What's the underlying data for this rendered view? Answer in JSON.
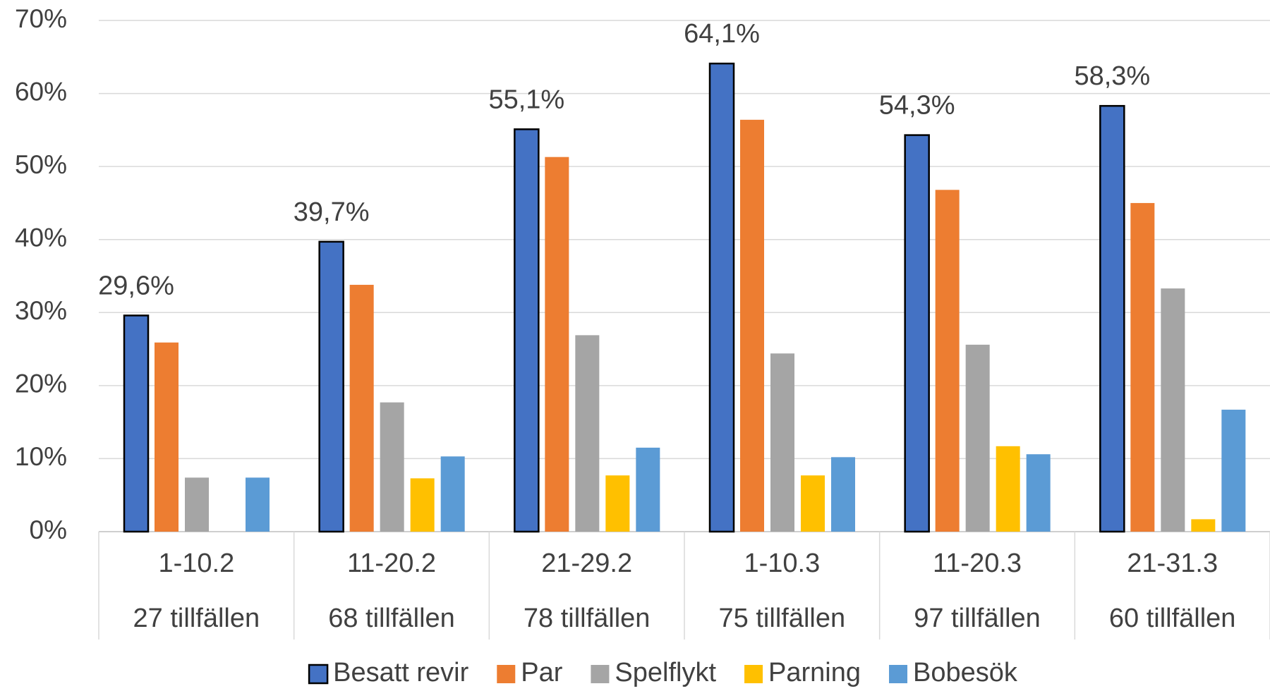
{
  "chart_data": {
    "type": "bar",
    "categories": [
      [
        "1-10.2",
        "27 tillfällen"
      ],
      [
        "11-20.2",
        "68 tillfällen"
      ],
      [
        "21-29.2",
        "78 tillfällen"
      ],
      [
        "1-10.3",
        "75 tillfällen"
      ],
      [
        "11-20.3",
        "97 tillfällen"
      ],
      [
        "21-31.3",
        "60 tillfällen"
      ]
    ],
    "series": [
      {
        "name": "Besatt revir",
        "color": "#4472c4",
        "edgecolor": "#000000",
        "values": [
          29.6,
          39.7,
          55.1,
          64.1,
          54.3,
          58.3
        ],
        "value_labels": [
          "29,6%",
          "39,7%",
          "55,1%",
          "64,1%",
          "54,3%",
          "58,3%"
        ]
      },
      {
        "name": "Par",
        "color": "#ed7d31",
        "values": [
          25.9,
          33.8,
          51.3,
          56.4,
          46.8,
          45.0
        ]
      },
      {
        "name": "Spelflykt",
        "color": "#a5a5a5",
        "values": [
          7.4,
          17.7,
          26.9,
          24.4,
          25.6,
          33.3
        ]
      },
      {
        "name": "Parning",
        "color": "#ffc000",
        "values": [
          0,
          7.3,
          7.7,
          7.7,
          11.7,
          1.7
        ]
      },
      {
        "name": "Bobesök",
        "color": "#5b9bd5",
        "values": [
          7.4,
          10.3,
          11.5,
          10.2,
          10.6,
          16.7
        ]
      }
    ],
    "ylim": [
      0,
      70
    ],
    "yticks": [
      {
        "value": 0,
        "label": "0%"
      },
      {
        "value": 10,
        "label": "10%"
      },
      {
        "value": 20,
        "label": "20%"
      },
      {
        "value": 30,
        "label": "30%"
      },
      {
        "value": 40,
        "label": "40%"
      },
      {
        "value": 50,
        "label": "50%"
      },
      {
        "value": 60,
        "label": "60%"
      },
      {
        "value": 70,
        "label": "70%"
      }
    ],
    "grid": true,
    "legend": "bottom"
  }
}
